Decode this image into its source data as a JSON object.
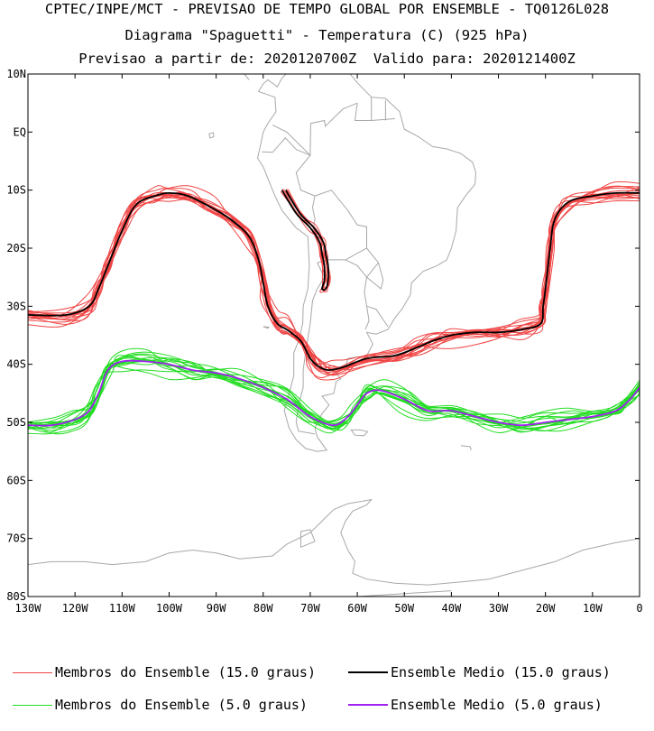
{
  "header": {
    "line1": "CPTEC/INPE/MCT - PREVISAO DE TEMPO GLOBAL POR ENSEMBLE - TQ0126L028",
    "line2": "Diagrama \"Spaguetti\" - Temperatura (C) (925 hPa)",
    "line3": "Previsao a partir de: 2020120700Z  Valido para: 2020121400Z"
  },
  "chart_data": {
    "type": "line",
    "title": "Diagrama \"Spaguetti\" - Temperatura (C) (925 hPa)",
    "xlabel": "",
    "ylabel": "",
    "xlim": [
      -130,
      0
    ],
    "ylim": [
      -80,
      10
    ],
    "x_ticks": [
      {
        "value": -130,
        "label": "130W"
      },
      {
        "value": -120,
        "label": "120W"
      },
      {
        "value": -110,
        "label": "110W"
      },
      {
        "value": -100,
        "label": "100W"
      },
      {
        "value": -90,
        "label": "90W"
      },
      {
        "value": -80,
        "label": "80W"
      },
      {
        "value": -70,
        "label": "70W"
      },
      {
        "value": -60,
        "label": "60W"
      },
      {
        "value": -50,
        "label": "50W"
      },
      {
        "value": -40,
        "label": "40W"
      },
      {
        "value": -30,
        "label": "30W"
      },
      {
        "value": -20,
        "label": "20W"
      },
      {
        "value": -10,
        "label": "10W"
      },
      {
        "value": 0,
        "label": "0"
      }
    ],
    "y_ticks": [
      {
        "value": 10,
        "label": "10N"
      },
      {
        "value": 0,
        "label": "EQ"
      },
      {
        "value": -10,
        "label": "10S"
      },
      {
        "value": -20,
        "label": "20S"
      },
      {
        "value": -30,
        "label": "30S"
      },
      {
        "value": -40,
        "label": "40S"
      },
      {
        "value": -50,
        "label": "50S"
      },
      {
        "value": -60,
        "label": "60S"
      },
      {
        "value": -70,
        "label": "70S"
      },
      {
        "value": -80,
        "label": "80S"
      }
    ],
    "series": [
      {
        "name": "Ensemble Medio (15.0 graus)",
        "color": "#000000",
        "x": [
          -130,
          -122,
          -117,
          -115,
          -113,
          -110,
          -107,
          -103,
          -100,
          -96,
          -91,
          -87,
          -83,
          -81,
          -80,
          -79,
          -77,
          -75,
          -72,
          -70,
          -68,
          -66,
          -63,
          -58,
          -52,
          -47,
          -44,
          -40,
          -35,
          -30,
          -25,
          -21,
          -20.5,
          -20,
          -19,
          -18,
          -15,
          -10,
          -5,
          0
        ],
        "y": [
          -31.5,
          -31.5,
          -30,
          -27,
          -23,
          -17,
          -12.5,
          -11,
          -10.5,
          -11,
          -13,
          -15,
          -18,
          -22,
          -26,
          -30,
          -33,
          -34,
          -36,
          -39,
          -40.5,
          -41,
          -40.5,
          -39,
          -38.5,
          -37,
          -36,
          -35,
          -34.5,
          -34.5,
          -34,
          -33,
          -30,
          -27,
          -20,
          -15,
          -12,
          -11,
          -10.5,
          -10.5
        ]
      },
      {
        "name": "Ensemble Medio (15.0 graus) - Andes",
        "color": "#000000",
        "x": [
          -76,
          -73,
          -70,
          -68,
          -67.5,
          -67,
          -67,
          -67.5
        ],
        "y": [
          -10,
          -14,
          -16.5,
          -19,
          -21,
          -23,
          -25.5,
          -27
        ]
      },
      {
        "name": "Ensemble Medio (5.0 graus)",
        "color": "#a020f0",
        "x": [
          -130,
          -125,
          -120,
          -117,
          -115,
          -113,
          -110,
          -105,
          -100,
          -95,
          -90,
          -85,
          -80,
          -75,
          -70,
          -65,
          -62,
          -60,
          -58,
          -55,
          -50,
          -45,
          -40,
          -35,
          -30,
          -25,
          -20,
          -15,
          -10,
          -5,
          -2,
          0
        ],
        "y": [
          -50.5,
          -50.5,
          -49.5,
          -48,
          -45,
          -41,
          -39.5,
          -39.5,
          -40,
          -41,
          -41.5,
          -42.5,
          -44,
          -46,
          -49,
          -50.5,
          -49,
          -47,
          -45,
          -44.5,
          -46,
          -48,
          -48,
          -49,
          -50,
          -50.5,
          -50,
          -49.5,
          -49,
          -48,
          -46,
          -44
        ]
      }
    ],
    "ensemble_members": [
      {
        "name": "Membros do Ensemble (15.0 graus)",
        "color": "#f04545",
        "count": 15,
        "follows": "Ensemble Medio (15.0 graus)"
      },
      {
        "name": "Membros do Ensemble (5.0 graus)",
        "color": "#22dd22",
        "count": 15,
        "follows": "Ensemble Medio (5.0 graus)"
      }
    ],
    "legend": [
      {
        "label": "Membros do Ensemble (15.0 graus)",
        "color": "#f04545"
      },
      {
        "label": "Ensemble Medio (15.0 graus)",
        "color": "#000000"
      },
      {
        "label": "Membros do Ensemble (5.0 graus)",
        "color": "#22dd22"
      },
      {
        "label": "Ensemble Medio (5.0 graus)",
        "color": "#a020f0"
      }
    ],
    "legend_position": "bottom",
    "grid": false
  }
}
